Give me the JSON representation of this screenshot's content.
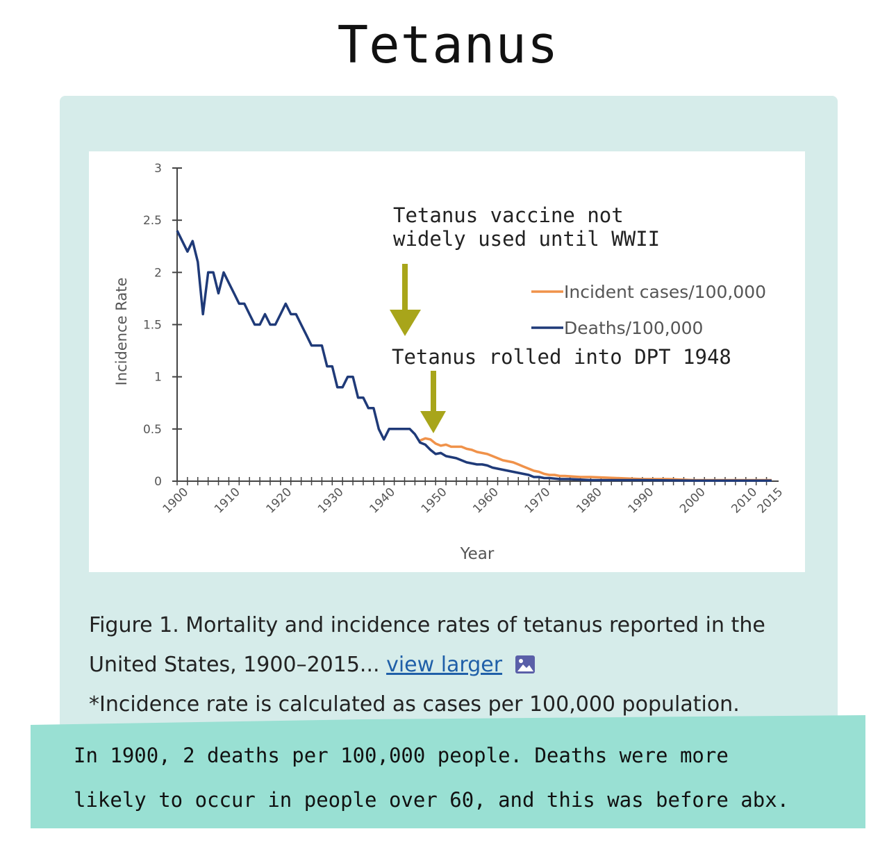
{
  "page": {
    "title": "Tetanus",
    "caption_line1": "Figure 1. Mortality and incidence rates of tetanus reported in the",
    "caption_line2": "United States, 1900–2015...",
    "view_larger": "view larger",
    "caption_note": "*Incidence rate is calculated as cases per 100,000 population.",
    "bottom_line1": "In 1900, 2 deaths per 100,000 people. Deaths were more",
    "bottom_line2": "likely to occur in people over 60, and this was before abx."
  },
  "icons": {
    "view_larger_icon": "image-icon"
  },
  "colors": {
    "panel": "#d6ecea",
    "band": "#99e0d3",
    "incident": "#f0924a",
    "deaths": "#1f3a78",
    "arrow": "#a8a51a"
  },
  "chart_data": {
    "type": "line",
    "ylabel": "Incidence Rate",
    "xlabel": "Year",
    "xlim": [
      1900,
      2015
    ],
    "ylim": [
      0,
      3
    ],
    "x_ticks": [
      1900,
      1910,
      1920,
      1930,
      1940,
      1950,
      1960,
      1970,
      1980,
      1990,
      2000,
      2010,
      2015
    ],
    "y_ticks": [
      "0",
      "0.5",
      "1",
      "1.5",
      "2",
      "2.5",
      "3"
    ],
    "legend": [
      "Incident cases/100,000",
      "Deaths/100,000"
    ],
    "series": [
      {
        "name": "Incident cases/100,000",
        "color": "#f0924a",
        "points": [
          [
            1947,
            0.39
          ],
          [
            1948,
            0.41
          ],
          [
            1949,
            0.4
          ],
          [
            1950,
            0.36
          ],
          [
            1951,
            0.34
          ],
          [
            1952,
            0.35
          ],
          [
            1953,
            0.33
          ],
          [
            1954,
            0.33
          ],
          [
            1955,
            0.33
          ],
          [
            1956,
            0.31
          ],
          [
            1957,
            0.3
          ],
          [
            1958,
            0.28
          ],
          [
            1959,
            0.27
          ],
          [
            1960,
            0.26
          ],
          [
            1961,
            0.24
          ],
          [
            1962,
            0.22
          ],
          [
            1963,
            0.2
          ],
          [
            1964,
            0.19
          ],
          [
            1965,
            0.18
          ],
          [
            1966,
            0.16
          ],
          [
            1967,
            0.14
          ],
          [
            1968,
            0.12
          ],
          [
            1969,
            0.1
          ],
          [
            1970,
            0.09
          ],
          [
            1971,
            0.07
          ],
          [
            1972,
            0.06
          ],
          [
            1973,
            0.06
          ],
          [
            1974,
            0.05
          ],
          [
            1975,
            0.05
          ],
          [
            1978,
            0.04
          ],
          [
            1980,
            0.04
          ],
          [
            1985,
            0.03
          ],
          [
            1990,
            0.02
          ],
          [
            1995,
            0.02
          ],
          [
            2000,
            0.01
          ],
          [
            2005,
            0.01
          ],
          [
            2010,
            0.01
          ],
          [
            2015,
            0.01
          ]
        ]
      },
      {
        "name": "Deaths/100,000",
        "color": "#1f3a78",
        "points": [
          [
            1900,
            2.4
          ],
          [
            1901,
            2.3
          ],
          [
            1902,
            2.2
          ],
          [
            1903,
            2.3
          ],
          [
            1904,
            2.1
          ],
          [
            1905,
            1.6
          ],
          [
            1906,
            2.0
          ],
          [
            1907,
            2.0
          ],
          [
            1908,
            1.8
          ],
          [
            1909,
            2.0
          ],
          [
            1910,
            1.9
          ],
          [
            1911,
            1.8
          ],
          [
            1912,
            1.7
          ],
          [
            1913,
            1.7
          ],
          [
            1914,
            1.6
          ],
          [
            1915,
            1.5
          ],
          [
            1916,
            1.5
          ],
          [
            1917,
            1.6
          ],
          [
            1918,
            1.5
          ],
          [
            1919,
            1.5
          ],
          [
            1920,
            1.6
          ],
          [
            1921,
            1.7
          ],
          [
            1922,
            1.6
          ],
          [
            1923,
            1.6
          ],
          [
            1924,
            1.5
          ],
          [
            1925,
            1.4
          ],
          [
            1926,
            1.3
          ],
          [
            1927,
            1.3
          ],
          [
            1928,
            1.3
          ],
          [
            1929,
            1.1
          ],
          [
            1930,
            1.1
          ],
          [
            1931,
            0.9
          ],
          [
            1932,
            0.9
          ],
          [
            1933,
            1.0
          ],
          [
            1934,
            1.0
          ],
          [
            1935,
            0.8
          ],
          [
            1936,
            0.8
          ],
          [
            1937,
            0.7
          ],
          [
            1938,
            0.7
          ],
          [
            1939,
            0.5
          ],
          [
            1940,
            0.4
          ],
          [
            1941,
            0.5
          ],
          [
            1942,
            0.5
          ],
          [
            1943,
            0.5
          ],
          [
            1944,
            0.5
          ],
          [
            1945,
            0.5
          ],
          [
            1946,
            0.45
          ],
          [
            1947,
            0.37
          ],
          [
            1948,
            0.35
          ],
          [
            1949,
            0.3
          ],
          [
            1950,
            0.26
          ],
          [
            1951,
            0.27
          ],
          [
            1952,
            0.24
          ],
          [
            1953,
            0.23
          ],
          [
            1954,
            0.22
          ],
          [
            1955,
            0.2
          ],
          [
            1956,
            0.18
          ],
          [
            1957,
            0.17
          ],
          [
            1958,
            0.16
          ],
          [
            1959,
            0.16
          ],
          [
            1960,
            0.15
          ],
          [
            1961,
            0.13
          ],
          [
            1962,
            0.12
          ],
          [
            1963,
            0.11
          ],
          [
            1964,
            0.1
          ],
          [
            1965,
            0.09
          ],
          [
            1966,
            0.08
          ],
          [
            1967,
            0.07
          ],
          [
            1968,
            0.06
          ],
          [
            1969,
            0.04
          ],
          [
            1970,
            0.04
          ],
          [
            1971,
            0.03
          ],
          [
            1972,
            0.03
          ],
          [
            1974,
            0.02
          ],
          [
            1976,
            0.02
          ],
          [
            1980,
            0.01
          ],
          [
            1990,
            0.01
          ],
          [
            2000,
            0.005
          ],
          [
            2010,
            0.005
          ],
          [
            2015,
            0.005
          ]
        ]
      }
    ],
    "annotations": [
      {
        "text_line1": "Tetanus vaccine not",
        "text_line2": "widely used until WWII",
        "arrow_x": 1944,
        "arrow_y": 1.4
      },
      {
        "text_line1": "Tetanus rolled into DPT 1948",
        "arrow_x": 1948,
        "arrow_y": 0.45
      }
    ]
  }
}
